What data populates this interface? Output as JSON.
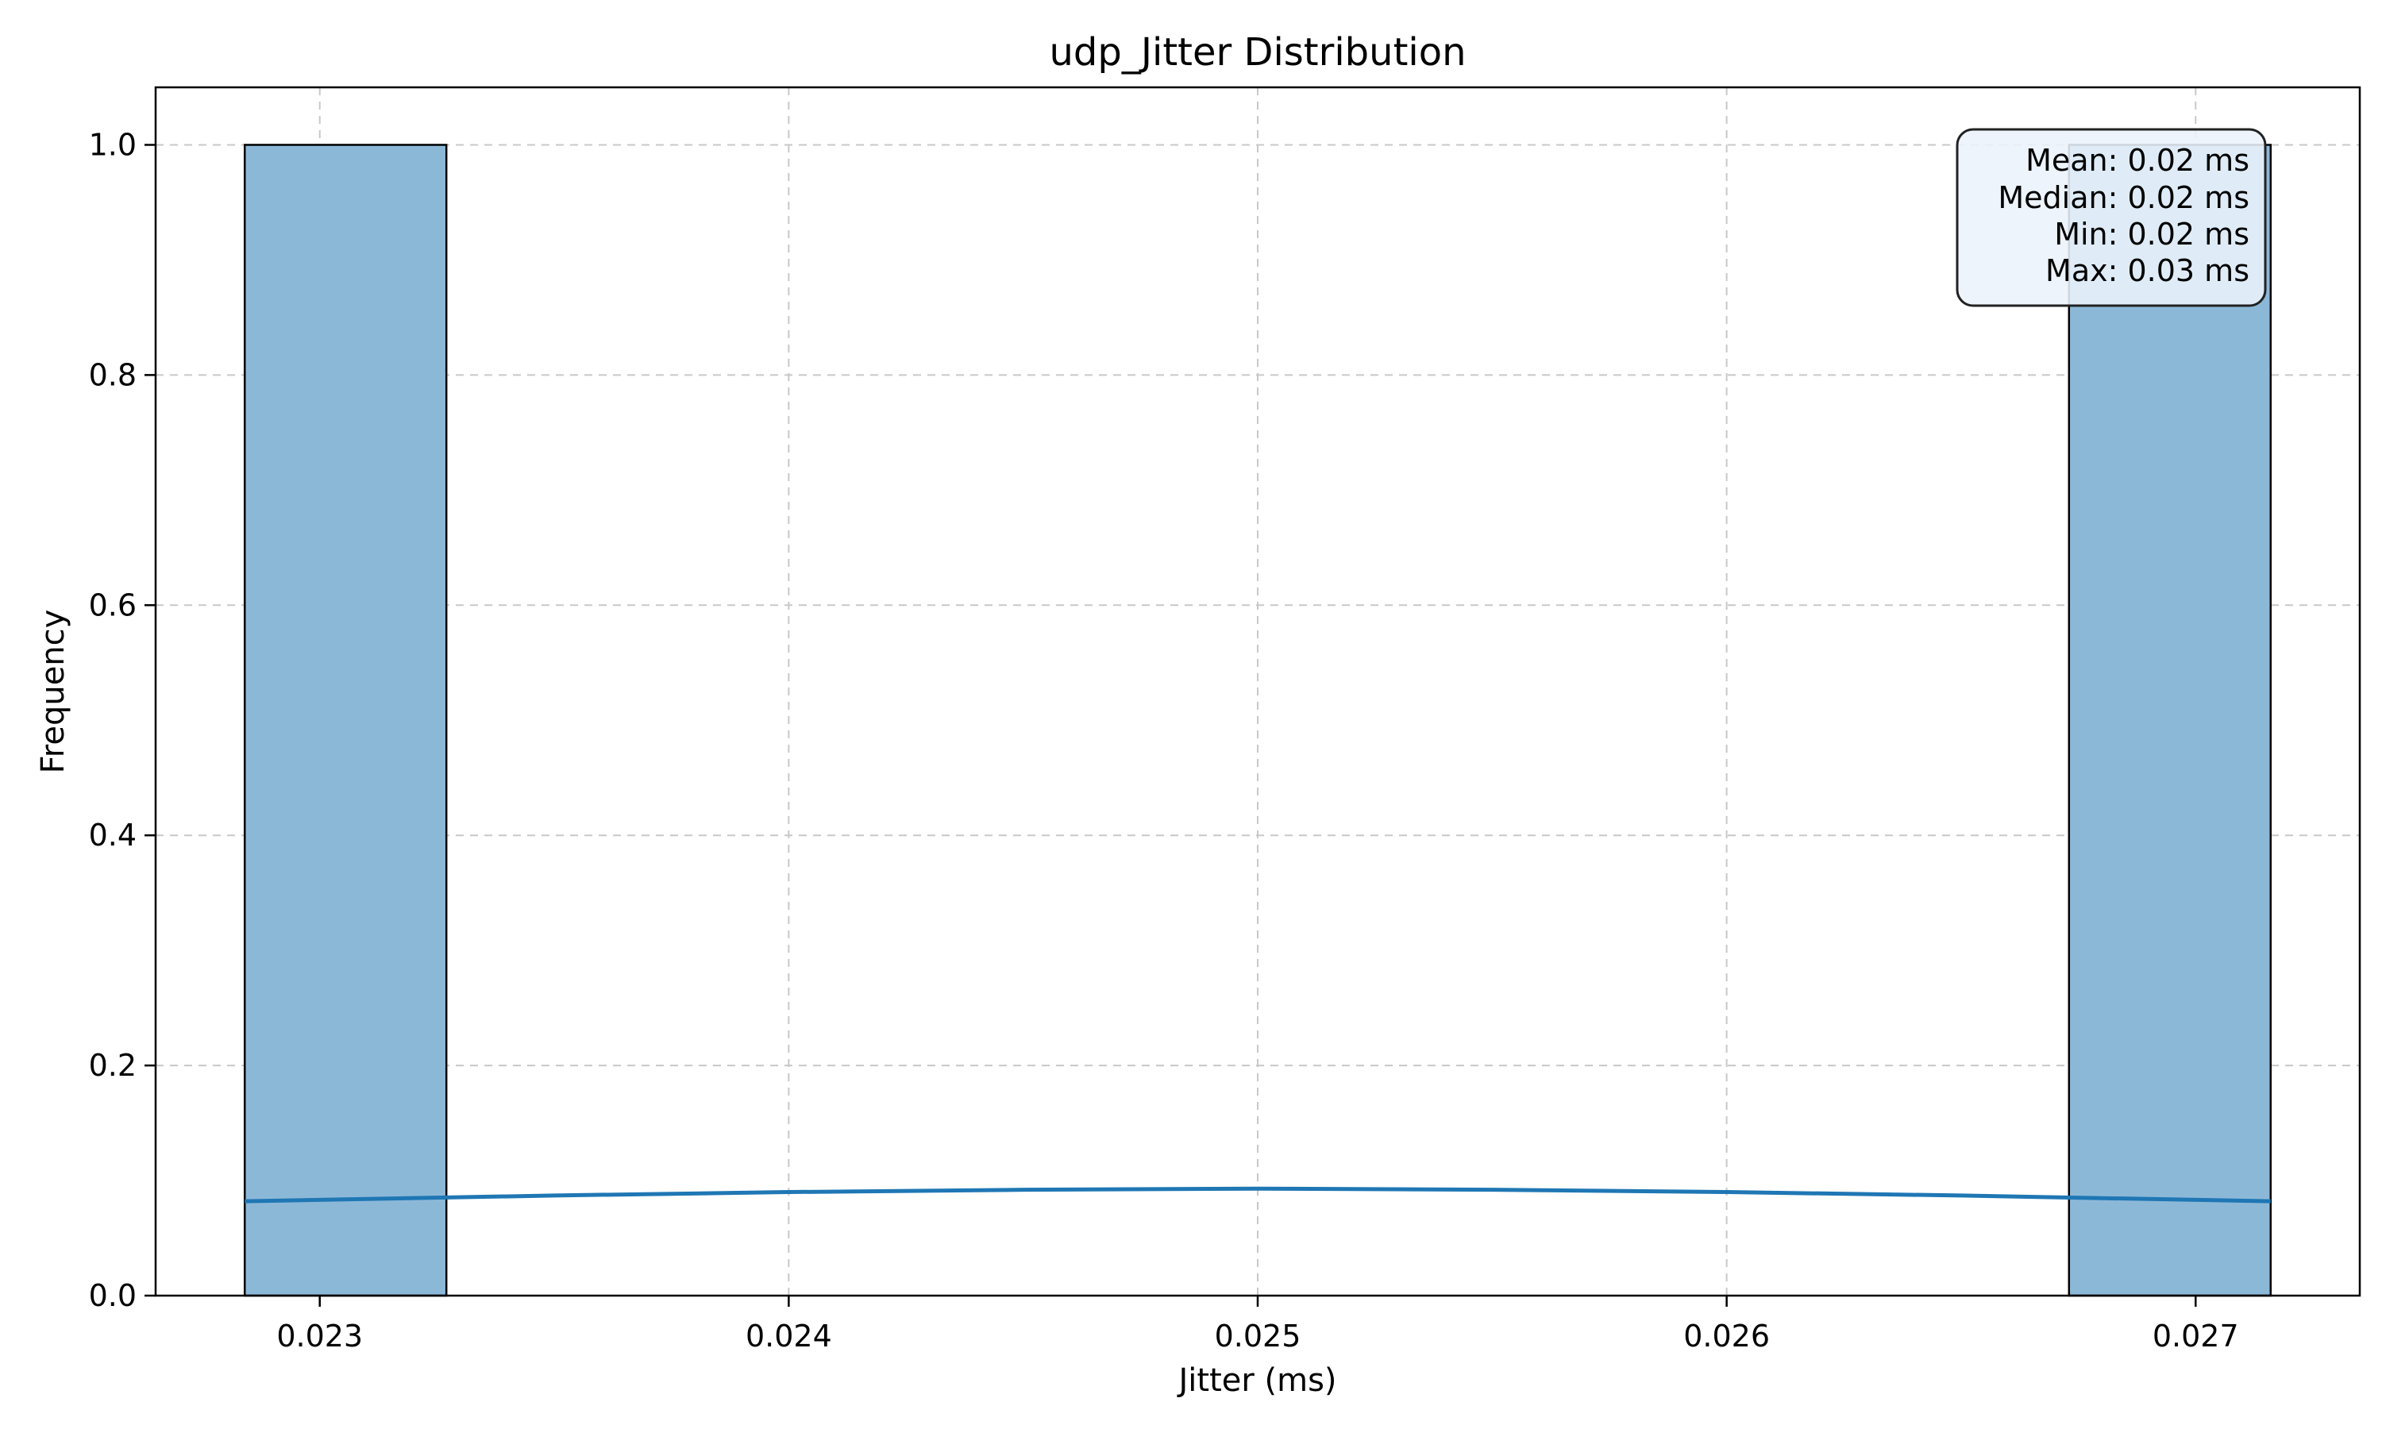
{
  "chart_data": {
    "type": "bar",
    "title": "udp_Jitter Distribution",
    "xlabel": "Jitter (ms)",
    "ylabel": "Frequency",
    "xlim": [
      0.02265,
      0.02735
    ],
    "ylim": [
      0,
      1.05
    ],
    "grid": true,
    "x_ticks": [
      0.023,
      0.024,
      0.025,
      0.026,
      0.027
    ],
    "x_tick_labels": [
      "0.023",
      "0.024",
      "0.025",
      "0.026",
      "0.027"
    ],
    "y_ticks": [
      0.0,
      0.2,
      0.4,
      0.6,
      0.8,
      1.0
    ],
    "y_tick_labels": [
      "0.0",
      "0.2",
      "0.4",
      "0.6",
      "0.8",
      "1.0"
    ],
    "bins": [
      {
        "x_start": 0.02284,
        "x_end": 0.02327,
        "count": 1
      },
      {
        "x_start": 0.02673,
        "x_end": 0.02716,
        "count": 1
      }
    ],
    "kde": {
      "x": [
        0.02284,
        0.0235,
        0.024,
        0.0245,
        0.025,
        0.0255,
        0.026,
        0.0265,
        0.02716
      ],
      "y": [
        0.082,
        0.087,
        0.09,
        0.092,
        0.093,
        0.092,
        0.09,
        0.087,
        0.082
      ]
    },
    "stats_box": {
      "lines": [
        "Mean: 0.02 ms",
        "Median: 0.02 ms",
        "Min: 0.02 ms",
        "Max: 0.03 ms"
      ],
      "placement": "top-right"
    },
    "colors": {
      "bar_fill": "#8cb8d8",
      "bar_edge": "#000000",
      "kde_line": "#1f77b4",
      "grid": "#c8c8c8",
      "stats_box_fill": "#eaf2fb",
      "stats_box_edge": "#222222"
    }
  }
}
